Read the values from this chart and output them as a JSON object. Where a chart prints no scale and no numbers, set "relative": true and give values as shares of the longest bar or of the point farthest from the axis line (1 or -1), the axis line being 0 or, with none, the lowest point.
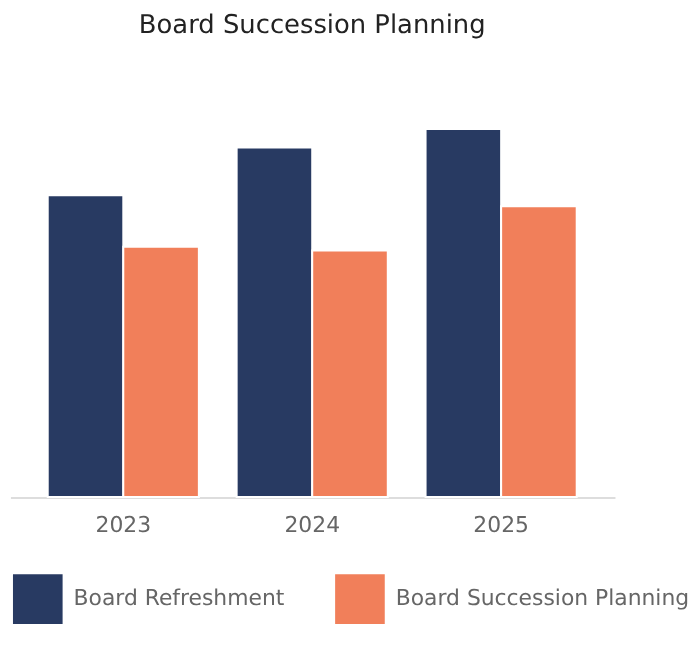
{
  "chart_data": {
    "type": "bar",
    "title": "Board Succession Planning",
    "relative": true,
    "categories": [
      "2023",
      "2024",
      "2025"
    ],
    "series": [
      {
        "name": "Board Refreshment",
        "color": "#283a62",
        "values": [
          0.82,
          0.95,
          1.0
        ]
      },
      {
        "name": "Board Succession Planning",
        "color": "#f17f5a",
        "values": [
          0.68,
          0.67,
          0.79
        ]
      }
    ],
    "legend": "bottom",
    "grid": false
  }
}
